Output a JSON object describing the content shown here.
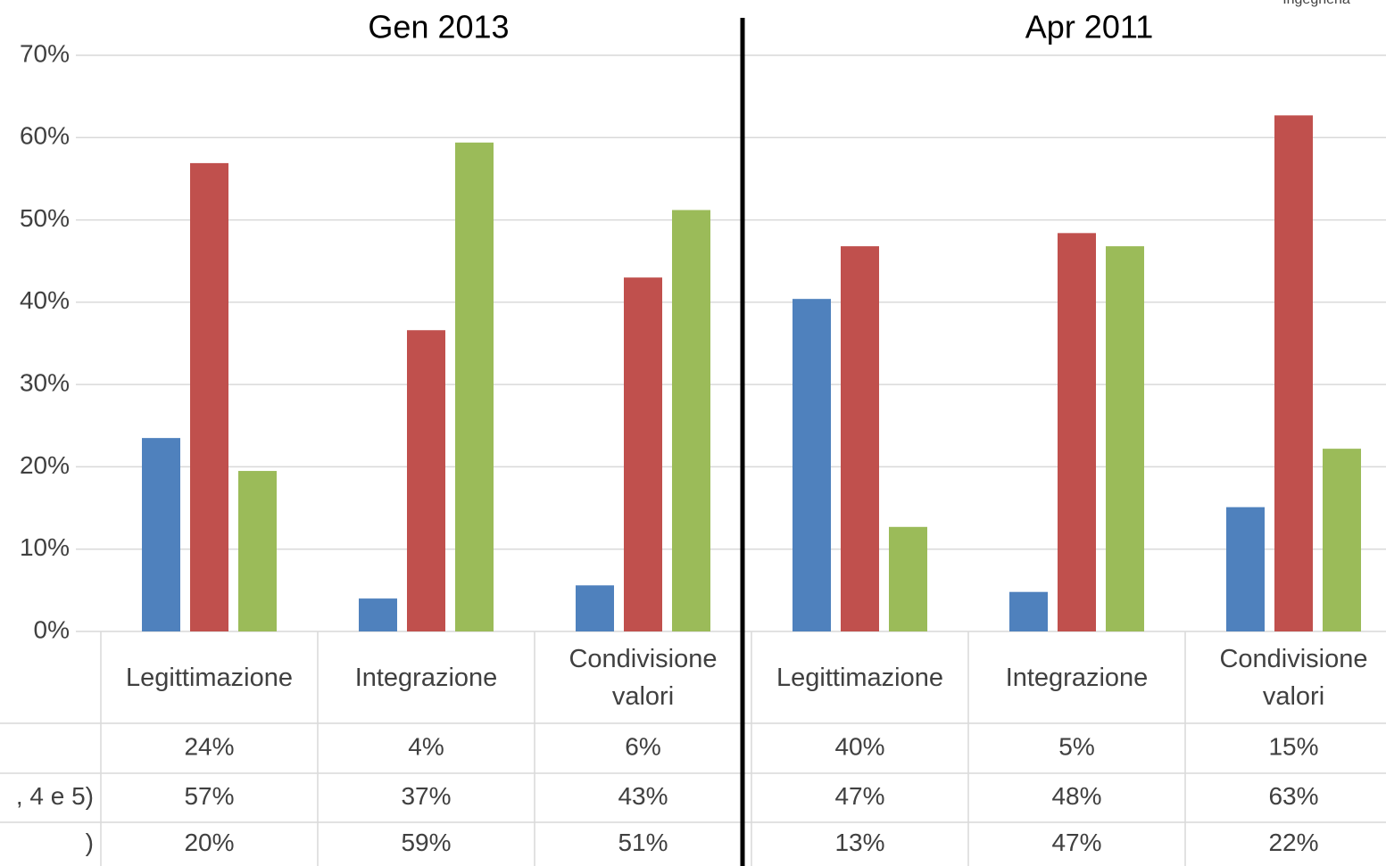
{
  "chart_data": {
    "type": "bar",
    "annotation": "Ingegneria",
    "group_labels": [
      "Gen 2013",
      "Apr 2011"
    ],
    "categories": [
      "Legittimazione",
      "Integrazione",
      "Condivisione valori",
      "Legittimazione",
      "Integrazione",
      "Condivisione valori"
    ],
    "series": [
      {
        "color": "#4f81bd",
        "values": [
          23.5,
          4.0,
          5.6,
          40.4,
          4.8,
          15.1
        ],
        "value_labels": [
          "24%",
          "4%",
          "6%",
          "40%",
          "5%",
          "15%"
        ]
      },
      {
        "name": ", 4 e 5)",
        "color": "#c0504d",
        "values": [
          56.9,
          36.6,
          43.0,
          46.8,
          48.4,
          62.7
        ],
        "value_labels": [
          "57%",
          "37%",
          "43%",
          "47%",
          "48%",
          "63%"
        ]
      },
      {
        "name": ")",
        "color": "#9bbb59",
        "values": [
          19.5,
          59.4,
          51.2,
          12.7,
          46.8,
          22.2
        ],
        "value_labels": [
          "20%",
          "59%",
          "51%",
          "13%",
          "47%",
          "22%"
        ]
      }
    ],
    "ylim": [
      0,
      70
    ],
    "yticks": [
      {
        "value": 0,
        "label": "0%"
      },
      {
        "value": 10,
        "label": "10%"
      },
      {
        "value": 20,
        "label": "20%"
      },
      {
        "value": 30,
        "label": "30%"
      },
      {
        "value": 40,
        "label": "40%"
      },
      {
        "value": 50,
        "label": "50%"
      },
      {
        "value": 60,
        "label": "60%"
      },
      {
        "value": 70,
        "label": "70%"
      }
    ],
    "grid": true
  }
}
